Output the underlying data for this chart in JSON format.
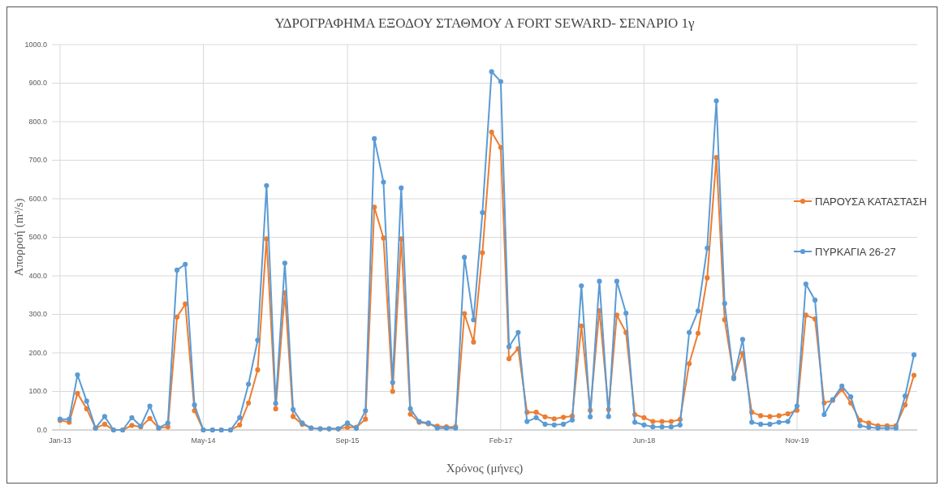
{
  "chart_data": {
    "type": "line",
    "title": "ΥΔΡΟΓΡΑΦΗΜΑ ΕΞΟΔΟΥ ΣΤΑΘΜΟΥ Α FORT SEWARD- ΣΕΝΑΡΙΟ 1γ",
    "xlabel": "Χρόνος (μήνες)",
    "ylabel": "Απορροή (m³/s)",
    "x": [
      "2013-01",
      "2013-02",
      "2013-03",
      "2013-04",
      "2013-05",
      "2013-06",
      "2013-07",
      "2013-08",
      "2013-09",
      "2013-10",
      "2013-11",
      "2013-12",
      "2014-01",
      "2014-02",
      "2014-03",
      "2014-04",
      "2014-05",
      "2014-06",
      "2014-07",
      "2014-08",
      "2014-09",
      "2014-10",
      "2014-11",
      "2014-12",
      "2015-01",
      "2015-02",
      "2015-03",
      "2015-04",
      "2015-05",
      "2015-06",
      "2015-07",
      "2015-08",
      "2015-09",
      "2015-10",
      "2015-11",
      "2015-12",
      "2016-01",
      "2016-02",
      "2016-03",
      "2016-04",
      "2016-05",
      "2016-06",
      "2016-07",
      "2016-08",
      "2016-09",
      "2016-10",
      "2016-11",
      "2016-12",
      "2017-01",
      "2017-02",
      "2017-03",
      "2017-04",
      "2017-05",
      "2017-06",
      "2017-07",
      "2017-08",
      "2017-09",
      "2017-10",
      "2017-11",
      "2017-12",
      "2018-01",
      "2018-02",
      "2018-03",
      "2018-04",
      "2018-05",
      "2018-06",
      "2018-07",
      "2018-08",
      "2018-09",
      "2018-10",
      "2018-11",
      "2018-12",
      "2019-01",
      "2019-02",
      "2019-03",
      "2019-04",
      "2019-05",
      "2019-06",
      "2019-07",
      "2019-08",
      "2019-09",
      "2019-10",
      "2019-11",
      "2019-12",
      "2020-01",
      "2020-02",
      "2020-03",
      "2020-04",
      "2020-05",
      "2020-06",
      "2020-07",
      "2020-08",
      "2020-09",
      "2020-10",
      "2020-11",
      "2020-12"
    ],
    "series": [
      {
        "name": "ΠΑΡΟΥΣΑ ΚΑΤΑΣΤΑΣΗ",
        "color": "#ed7d31",
        "values": [
          25,
          20,
          95,
          55,
          5,
          15,
          0,
          0,
          12,
          8,
          30,
          5,
          8,
          293,
          327,
          50,
          0,
          0,
          0,
          0,
          13,
          70,
          156,
          496,
          55,
          356,
          35,
          15,
          5,
          3,
          3,
          3,
          7,
          7,
          28,
          578,
          498,
          100,
          496,
          41,
          20,
          16,
          10,
          8,
          8,
          302,
          228,
          460,
          773,
          733,
          185,
          211,
          46,
          46,
          34,
          29,
          33,
          36,
          270,
          51,
          310,
          53,
          298,
          253,
          40,
          32,
          22,
          22,
          22,
          27,
          172,
          251,
          395,
          707,
          286,
          137,
          199,
          46,
          37,
          35,
          37,
          42,
          51,
          298,
          288,
          70,
          77,
          105,
          70,
          25,
          18,
          11,
          11,
          11,
          65,
          142
        ]
      },
      {
        "name": "ΠΥΡΚΑΓΙΑ 26-27",
        "color": "#5b9bd5",
        "values": [
          28,
          28,
          143,
          75,
          5,
          35,
          0,
          0,
          32,
          10,
          62,
          5,
          18,
          415,
          430,
          65,
          0,
          0,
          0,
          0,
          32,
          119,
          233,
          634,
          69,
          433,
          53,
          18,
          5,
          3,
          3,
          3,
          18,
          4,
          50,
          756,
          643,
          123,
          628,
          55,
          22,
          18,
          5,
          5,
          5,
          448,
          286,
          564,
          930,
          904,
          216,
          253,
          22,
          32,
          15,
          13,
          15,
          26,
          374,
          34,
          386,
          35,
          386,
          303,
          20,
          13,
          8,
          8,
          8,
          13,
          253,
          309,
          472,
          854,
          328,
          133,
          235,
          20,
          15,
          15,
          20,
          22,
          62,
          379,
          337,
          40,
          79,
          114,
          86,
          11,
          7,
          5,
          5,
          5,
          88,
          195
        ]
      }
    ],
    "xlim": [
      "2013-01",
      "2020-12"
    ],
    "xticks": [
      {
        "value": "2013-01",
        "label": "Jan-13"
      },
      {
        "value": "2014-05",
        "label": "May-14"
      },
      {
        "value": "2015-09",
        "label": "Sep-15"
      },
      {
        "value": "2017-02",
        "label": "Feb-17"
      },
      {
        "value": "2018-06",
        "label": "Jun-18"
      },
      {
        "value": "2019-11",
        "label": "Nov-19"
      }
    ],
    "ylim": [
      0,
      1000
    ],
    "yticks": [
      {
        "value": 0,
        "label": "0.0"
      },
      {
        "value": 100,
        "label": "100.0"
      },
      {
        "value": 200,
        "label": "200.0"
      },
      {
        "value": 300,
        "label": "300.0"
      },
      {
        "value": 400,
        "label": "400.0"
      },
      {
        "value": 500,
        "label": "500.0"
      },
      {
        "value": 600,
        "label": "600.0"
      },
      {
        "value": 700,
        "label": "700.0"
      },
      {
        "value": 800,
        "label": "800.0"
      },
      {
        "value": 900,
        "label": "900.0"
      },
      {
        "value": 1000,
        "label": "1000.0"
      }
    ],
    "grid": true,
    "legend": "right",
    "marker": "circle",
    "line_style": "solid"
  }
}
